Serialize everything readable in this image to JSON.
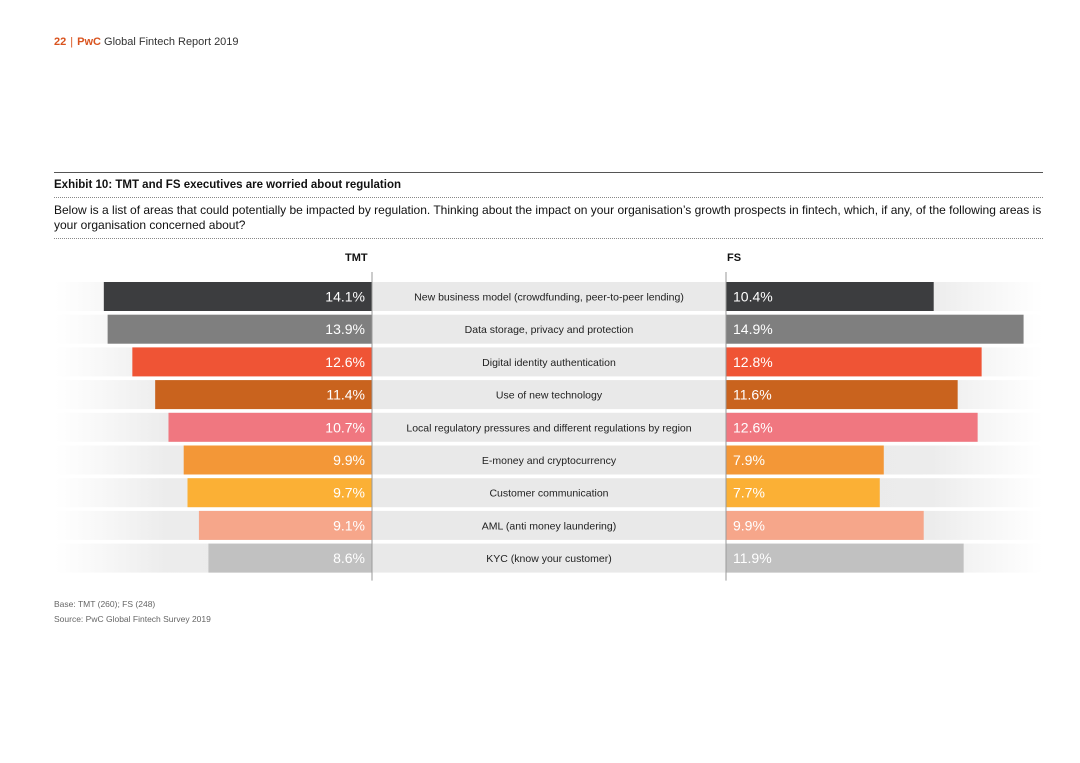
{
  "header": {
    "page_number": "22",
    "separator": "|",
    "brand": "PwC",
    "report_title": "Global Fintech Report 2019"
  },
  "exhibit": {
    "title": "Exhibit 10: TMT and FS executives are worried about regulation",
    "question": "Below is a list of areas that could potentially be impacted by regulation. Thinking about the impact on your organisation’s growth prospects in fintech, which, if any, of the following areas is your organisation concerned about?"
  },
  "chart_data": {
    "type": "bar",
    "title": "Exhibit 10: TMT and FS executives are worried about regulation",
    "orientation": "horizontal-butterfly",
    "left_series_name": "TMT",
    "right_series_name": "FS",
    "unit": "%",
    "xlim": [
      0,
      15
    ],
    "categories": [
      "New business model (crowdfunding, peer-to-peer lending)",
      "Data storage, privacy and protection",
      "Digital identity authentication",
      "Use of new technology",
      "Local regulatory pressures and different regulations by region",
      "E-money and cryptocurrency",
      "Customer communication",
      "AML (anti money laundering)",
      "KYC (know your customer)"
    ],
    "series": [
      {
        "name": "TMT",
        "values": [
          14.1,
          13.9,
          12.6,
          11.4,
          10.7,
          9.9,
          9.7,
          9.1,
          8.6
        ],
        "labels": [
          "14.1%",
          "13.9%",
          "12.6%",
          "11.4%",
          "10.7%",
          "9.9%",
          "9.7%",
          "9.1%",
          "8.6%"
        ]
      },
      {
        "name": "FS",
        "values": [
          10.4,
          14.9,
          12.8,
          11.6,
          12.6,
          7.9,
          7.7,
          9.9,
          11.9
        ],
        "labels": [
          "10.4%",
          "14.9%",
          "12.8%",
          "11.6%",
          "12.6%",
          "7.9%",
          "7.7%",
          "9.9%",
          "11.9%"
        ]
      }
    ],
    "colors": [
      "#3c3d3f",
      "#7f7f7f",
      "#ef5435",
      "#c9631e",
      "#f07780",
      "#f39737",
      "#fbb035",
      "#f6a68a",
      "#c1c1c1"
    ],
    "label_color": "#ffffff"
  },
  "footnotes": {
    "base": "Base: TMT (260); FS (248)",
    "source": "Source: PwC Global Fintech Survey 2019"
  }
}
